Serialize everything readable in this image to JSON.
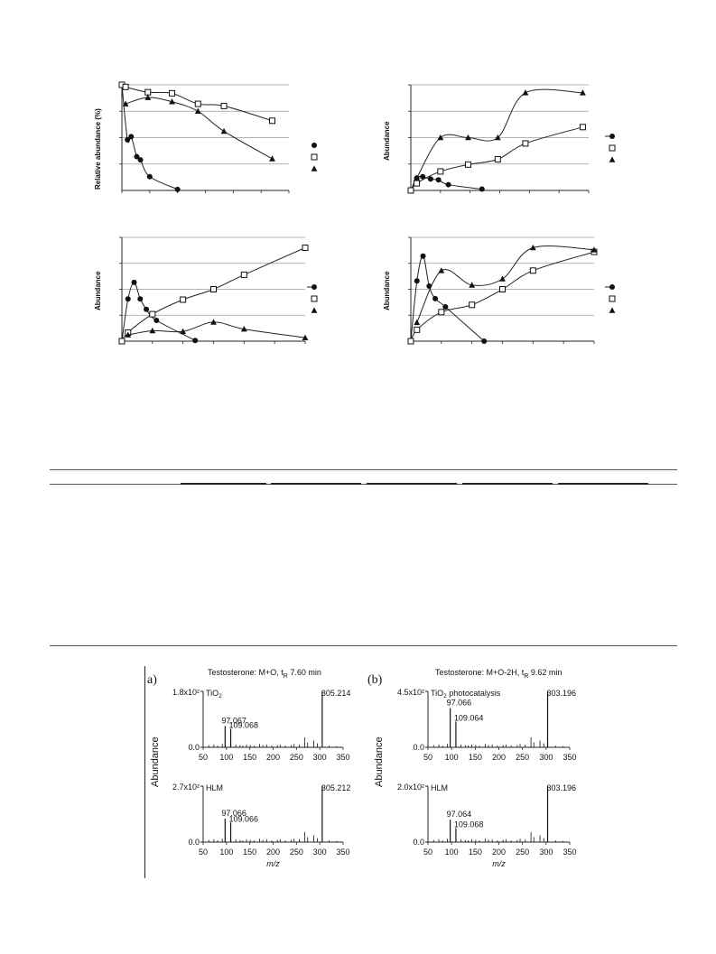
{
  "kinetics": {
    "panel1": {
      "ylabel": "Relative abundance (%)"
    },
    "panel2": {
      "ylabel": "Abundance"
    },
    "panel3": {
      "ylabel": "Abundance"
    },
    "panel4": {
      "ylabel": "Abundance"
    }
  },
  "spectra": {
    "ylabel_left": "Abundance",
    "ylabel_right": "Abundance",
    "xlabel": "m/z",
    "panel_a": {
      "letter": "a)",
      "title": "Testosterone: M+O, t",
      "title_sub": "R",
      "title_rest": " 7.60 min"
    },
    "panel_b": {
      "letter": "(b)",
      "title": "Testosterone: M+O-2H, t",
      "title_sub": "R",
      "title_rest": " 9.62 min"
    }
  },
  "chart_data": [
    {
      "type": "scatter",
      "panel": "top-left",
      "ylabel": "Relative abundance (%)",
      "x_range": [
        0,
        90
      ],
      "y_range": [
        0,
        100
      ],
      "grid": true,
      "series": [
        {
          "marker": "filled-circle",
          "x": [
            0,
            3,
            5,
            8,
            10,
            15,
            30
          ],
          "y": [
            100,
            48,
            51,
            32,
            29,
            13,
            1
          ]
        },
        {
          "marker": "open-square",
          "x": [
            0,
            2,
            14,
            27,
            41,
            55,
            81
          ],
          "y": [
            100,
            98,
            93,
            92,
            82,
            80,
            66
          ]
        },
        {
          "marker": "filled-triangle",
          "x": [
            2,
            14,
            27,
            41,
            55,
            81
          ],
          "y": [
            82,
            88,
            84,
            75,
            56,
            30
          ]
        }
      ]
    },
    {
      "type": "scatter",
      "panel": "top-right",
      "ylabel": "Abundance",
      "x_range": [
        0,
        90
      ],
      "y_range": [
        0,
        4
      ],
      "grid": true,
      "series": [
        {
          "marker": "filled-circle",
          "x": [
            0,
            3,
            6,
            10,
            14,
            19,
            36
          ],
          "y": [
            0,
            0.47,
            0.52,
            0.43,
            0.4,
            0.22,
            0.05
          ]
        },
        {
          "marker": "open-square",
          "x": [
            0,
            3,
            15,
            29,
            44,
            58,
            87
          ],
          "y": [
            0,
            0.27,
            0.72,
            0.98,
            1.18,
            1.78,
            2.4
          ]
        },
        {
          "marker": "filled-triangle",
          "x": [
            3,
            15,
            29,
            44,
            58,
            87
          ],
          "y": [
            0.47,
            2.0,
            2.0,
            2.0,
            3.7,
            3.7
          ]
        }
      ]
    },
    {
      "type": "scatter",
      "panel": "bottom-left",
      "ylabel": "Abundance",
      "x_range": [
        0,
        90
      ],
      "y_range": [
        0,
        3
      ],
      "grid": true,
      "series": [
        {
          "marker": "filled-circle",
          "x": [
            0,
            3,
            6,
            9,
            12,
            17,
            36
          ],
          "y": [
            0,
            1.22,
            1.7,
            1.22,
            0.92,
            0.6,
            0.02
          ]
        },
        {
          "marker": "open-square",
          "x": [
            0,
            3,
            15,
            30,
            45,
            60,
            90
          ],
          "y": [
            0,
            0.25,
            0.78,
            1.2,
            1.5,
            1.92,
            2.7
          ]
        },
        {
          "marker": "filled-triangle",
          "x": [
            3,
            15,
            30,
            45,
            60,
            90
          ],
          "y": [
            0.18,
            0.3,
            0.28,
            0.55,
            0.35,
            0.1
          ]
        }
      ]
    },
    {
      "type": "scatter",
      "panel": "bottom-right",
      "ylabel": "Abundance",
      "x_range": [
        0,
        90
      ],
      "y_range": [
        0,
        5
      ],
      "grid": true,
      "series": [
        {
          "marker": "filled-circle",
          "x": [
            0,
            3,
            6,
            9,
            12,
            17,
            36
          ],
          "y": [
            0,
            2.9,
            4.1,
            2.65,
            2.05,
            1.65,
            0
          ]
        },
        {
          "marker": "open-square",
          "x": [
            0,
            3,
            15,
            30,
            45,
            60,
            90
          ],
          "y": [
            0,
            0.55,
            1.4,
            1.75,
            2.5,
            3.4,
            4.3
          ]
        },
        {
          "marker": "filled-triangle",
          "x": [
            3,
            15,
            30,
            45,
            60,
            90
          ],
          "y": [
            0.9,
            3.4,
            2.7,
            3.0,
            4.5,
            4.4
          ]
        }
      ]
    },
    {
      "type": "bar",
      "panel": "spectrum-a-top",
      "label": "TiO2",
      "ymax_label": "1.8x10²",
      "y_zero_label": "0.0",
      "x_ticks": [
        50,
        100,
        150,
        200,
        250,
        300,
        350
      ],
      "peaks": [
        {
          "mz": 97.067,
          "rel": 0.38,
          "label": "97.067"
        },
        {
          "mz": 109.068,
          "rel": 0.33,
          "label": "109.068"
        },
        {
          "mz": 305.214,
          "rel": 1.0,
          "label": "305.214"
        }
      ]
    },
    {
      "type": "bar",
      "panel": "spectrum-a-bottom",
      "label": "HLM",
      "ymax_label": "2.7x10²",
      "y_zero_label": "0.0",
      "x_ticks": [
        50,
        100,
        150,
        200,
        250,
        300,
        350
      ],
      "peaks": [
        {
          "mz": 97.066,
          "rel": 0.42,
          "label": "97.066"
        },
        {
          "mz": 109.066,
          "rel": 0.35,
          "label": "109.066"
        },
        {
          "mz": 305.212,
          "rel": 1.0,
          "label": "305.212"
        }
      ]
    },
    {
      "type": "bar",
      "panel": "spectrum-b-top",
      "label": "TiO2 photocatalysis",
      "ymax_label": "4.5x10²",
      "y_zero_label": "0.0",
      "x_ticks": [
        50,
        100,
        150,
        200,
        250,
        300,
        350
      ],
      "peaks": [
        {
          "mz": 97.066,
          "rel": 0.7,
          "label": "97.066"
        },
        {
          "mz": 109.064,
          "rel": 0.46,
          "label": "109.064"
        },
        {
          "mz": 303.196,
          "rel": 1.0,
          "label": "303.196"
        }
      ]
    },
    {
      "type": "bar",
      "panel": "spectrum-b-bottom",
      "label": "HLM",
      "ymax_label": "2.0x10²",
      "y_zero_label": "0.0",
      "x_ticks": [
        50,
        100,
        150,
        200,
        250,
        300,
        350
      ],
      "peaks": [
        {
          "mz": 97.064,
          "rel": 0.4,
          "label": "97.064"
        },
        {
          "mz": 109.068,
          "rel": 0.25,
          "label": "109.068"
        },
        {
          "mz": 303.196,
          "rel": 1.0,
          "label": "303.196"
        }
      ]
    }
  ]
}
